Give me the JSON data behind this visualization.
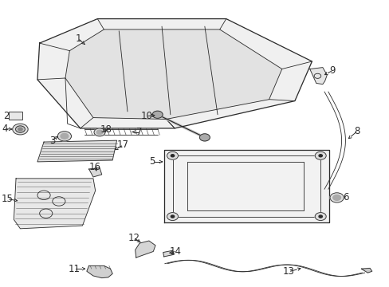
{
  "bg_color": "#ffffff",
  "fig_width": 4.89,
  "fig_height": 3.6,
  "dpi": 100,
  "line_color": "#2a2a2a",
  "label_fontsize": 8.5
}
